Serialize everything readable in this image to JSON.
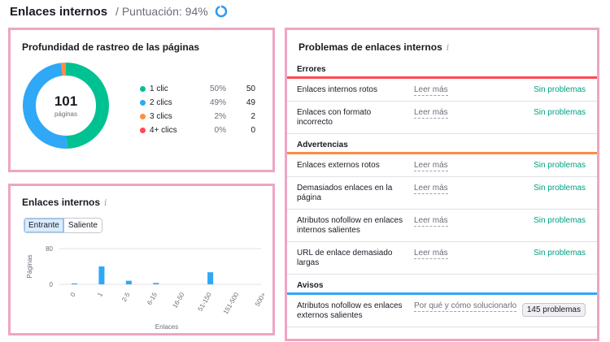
{
  "header": {
    "title": "Enlaces internos",
    "score_label": "/ Puntuación: 94%",
    "score_value": 94,
    "ring_color": "#2e9bf0"
  },
  "depth": {
    "title": "Profundidad de rastreo de las páginas",
    "total": "101",
    "total_label": "páginas",
    "items": [
      {
        "name": "1 clic",
        "pct": "50%",
        "count": "50",
        "value": 50,
        "color": "#00c192"
      },
      {
        "name": "2 clics",
        "pct": "49%",
        "count": "49",
        "value": 49,
        "color": "#2ea8f7"
      },
      {
        "name": "3 clics",
        "pct": "2%",
        "count": "2",
        "value": 2,
        "color": "#ff8c43"
      },
      {
        "name": "4+ clics",
        "pct": "0%",
        "count": "0",
        "value": 0,
        "color": "#ff4953"
      }
    ]
  },
  "links": {
    "title": "Enlaces internos",
    "tabs": [
      "Entrante",
      "Saliente"
    ],
    "active_tab": "Entrante"
  },
  "chart_data": {
    "type": "bar",
    "categories": [
      "0",
      "1",
      "2-5",
      "6-15",
      "16-50",
      "51-150",
      "151-500",
      "500+"
    ],
    "values": [
      2,
      40,
      8,
      3,
      0,
      27,
      0,
      0
    ],
    "ylabel": "Páginas",
    "xlabel": "Enlaces",
    "yticks": [
      "80",
      "0"
    ],
    "ylim": [
      0,
      80
    ],
    "bar_color": "#2ea8f7",
    "grid": true
  },
  "issues": {
    "title": "Problemas de enlaces internos",
    "sections": [
      {
        "name": "Errores",
        "color": "#ff4953",
        "rows": [
          {
            "label": "Enlaces internos rotos",
            "action": "Leer más",
            "status": "Sin problemas"
          },
          {
            "label": "Enlaces con formato incorrecto",
            "action": "Leer más",
            "status": "Sin problemas"
          }
        ]
      },
      {
        "name": "Advertencias",
        "color": "#ff8c43",
        "rows": [
          {
            "label": "Enlaces externos rotos",
            "action": "Leer más",
            "status": "Sin problemas"
          },
          {
            "label": "Demasiados enlaces en la página",
            "action": "Leer más",
            "status": "Sin problemas"
          },
          {
            "label": "Atributos nofollow en enlaces internos salientes",
            "action": "Leer más",
            "status": "Sin problemas"
          },
          {
            "label": "URL de enlace demasiado largas",
            "action": "Leer más",
            "status": "Sin problemas"
          }
        ]
      },
      {
        "name": "Avisos",
        "color": "#2ea8f7",
        "rows": [
          {
            "label": "Atributos nofollow es enlaces externos salientes",
            "action": "Por qué y cómo solucionarlo",
            "badge": "145 problemas"
          }
        ]
      }
    ]
  }
}
